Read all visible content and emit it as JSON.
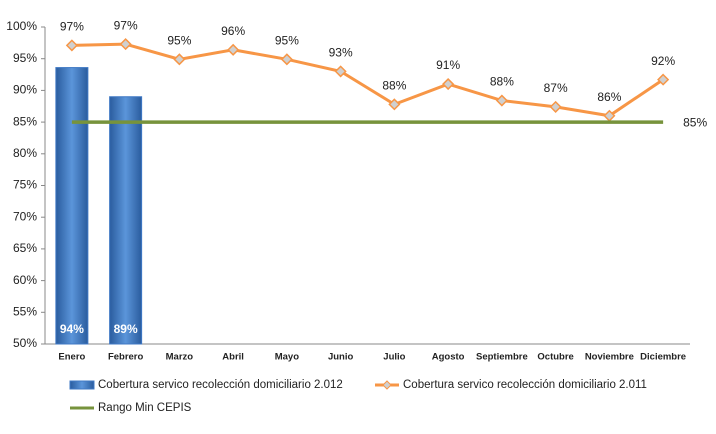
{
  "chart_data": {
    "type": "bar",
    "categories": [
      "Enero",
      "Febrero",
      "Marzo",
      "Abril",
      "Mayo",
      "Junio",
      "Julio",
      "Agosto",
      "Septiembre",
      "Octubre",
      "Noviembre",
      "Diciembre"
    ],
    "series": [
      {
        "name": "Cobertura servico recolección domiciliario 2.012",
        "kind": "bar",
        "color": "#3f78c4",
        "values": [
          93.6,
          89.0,
          null,
          null,
          null,
          null,
          null,
          null,
          null,
          null,
          null,
          null
        ],
        "value_labels": [
          "94%",
          "89%",
          null,
          null,
          null,
          null,
          null,
          null,
          null,
          null,
          null,
          null
        ]
      },
      {
        "name": "Cobertura servico recolección domiciliario 2.011",
        "kind": "line",
        "color": "#f79646",
        "values": [
          97.1,
          97.3,
          94.9,
          96.4,
          94.9,
          93.0,
          87.8,
          91.0,
          88.4,
          87.4,
          86.0,
          91.7
        ],
        "value_labels": [
          "97%",
          "97%",
          "95%",
          "96%",
          "95%",
          "93%",
          "88%",
          "91%",
          "88%",
          "87%",
          "86%",
          "92%"
        ]
      },
      {
        "name": "Rango Min CEPIS",
        "kind": "line",
        "color": "#77933c",
        "values": [
          85,
          85,
          85,
          85,
          85,
          85,
          85,
          85,
          85,
          85,
          85,
          85
        ],
        "value_labels": [
          null,
          null,
          null,
          null,
          null,
          null,
          null,
          null,
          null,
          null,
          null,
          "85%"
        ]
      }
    ],
    "ylim": [
      50,
      100
    ],
    "yticks": [
      {
        "value": 50,
        "label": "50%"
      },
      {
        "value": 55,
        "label": "55%"
      },
      {
        "value": 60,
        "label": "60%"
      },
      {
        "value": 65,
        "label": "65%"
      },
      {
        "value": 70,
        "label": "70%"
      },
      {
        "value": 75,
        "label": "75%"
      },
      {
        "value": 80,
        "label": "80%"
      },
      {
        "value": 85,
        "label": "85%"
      },
      {
        "value": 90,
        "label": "90%"
      },
      {
        "value": 95,
        "label": "95%"
      },
      {
        "value": 100,
        "label": "100%"
      }
    ],
    "grid": false
  }
}
